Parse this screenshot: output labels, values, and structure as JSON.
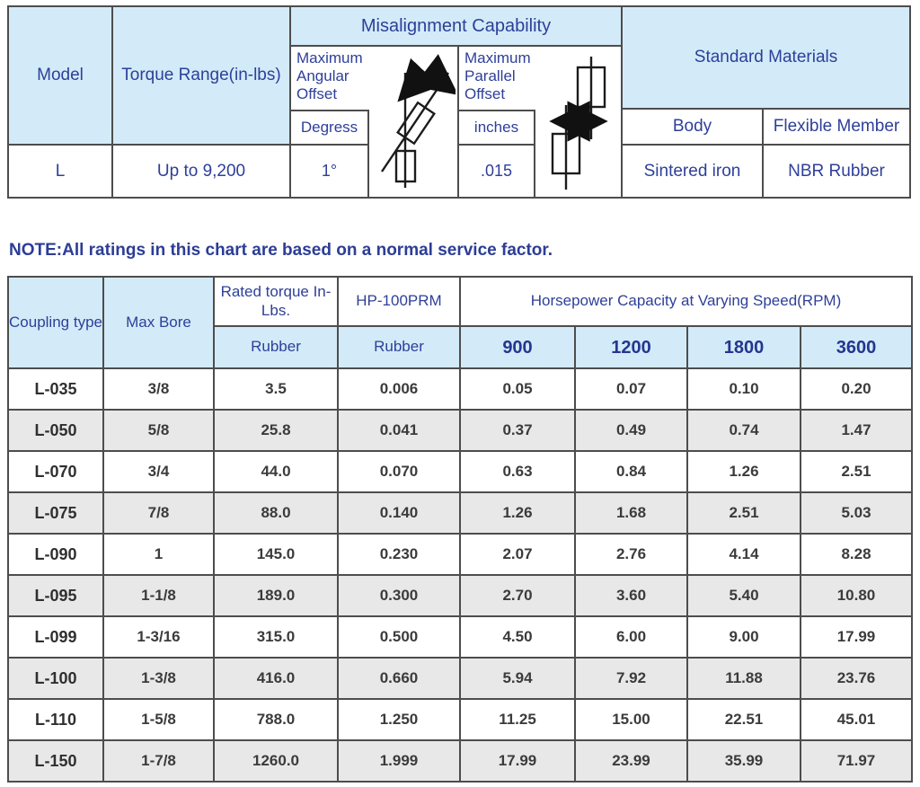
{
  "colors": {
    "header_fill": "#d3ebf8",
    "header_text": "#2e3f99",
    "note_text": "#2c3d96",
    "data_text": "#3b3b3b",
    "border": "#4d4d4d",
    "row_alt_fill": "#e8e8e8"
  },
  "spec_table": {
    "model": {
      "header": "Model",
      "value": "L"
    },
    "torque": {
      "header": "Torque Range(in-lbs)",
      "value": "Up to 9,200"
    },
    "misalignment": {
      "header": "Misalignment Capability",
      "angular": {
        "label": "Maximum Angular Offset",
        "unit": "Degress",
        "value": "1°",
        "icon": "angular-offset-icon"
      },
      "parallel": {
        "label": "Maximum Parallel Offset",
        "unit": "inches",
        "value": ".015",
        "icon": "parallel-offset-icon"
      }
    },
    "materials": {
      "header": "Standard Materials",
      "body": {
        "header": "Body",
        "value": "Sintered iron"
      },
      "flexible": {
        "header": "Flexible Member",
        "value": "NBR Rubber"
      }
    }
  },
  "note": "NOTE:All ratings in this chart are based on a normal service factor.",
  "hp_table": {
    "col_headers": {
      "coupling_type": "Coupling type",
      "max_bore": "Max Bore",
      "rated_torque": "Rated torque In-Lbs.",
      "rated_torque_sub": "Rubber",
      "hp_100rpm": "HP-100PRM",
      "hp_100rpm_sub": "Rubber",
      "horsepower": "Horsepower Capacity at Varying Speed(RPM)",
      "speeds": [
        "900",
        "1200",
        "1800",
        "3600"
      ]
    },
    "rows": [
      [
        "L-035",
        "3/8",
        "3.5",
        "0.006",
        "0.05",
        "0.07",
        "0.10",
        "0.20"
      ],
      [
        "L-050",
        "5/8",
        "25.8",
        "0.041",
        "0.37",
        "0.49",
        "0.74",
        "1.47"
      ],
      [
        "L-070",
        "3/4",
        "44.0",
        "0.070",
        "0.63",
        "0.84",
        "1.26",
        "2.51"
      ],
      [
        "L-075",
        "7/8",
        "88.0",
        "0.140",
        "1.26",
        "1.68",
        "2.51",
        "5.03"
      ],
      [
        "L-090",
        "1",
        "145.0",
        "0.230",
        "2.07",
        "2.76",
        "4.14",
        "8.28"
      ],
      [
        "L-095",
        "1-1/8",
        "189.0",
        "0.300",
        "2.70",
        "3.60",
        "5.40",
        "10.80"
      ],
      [
        "L-099",
        "1-3/16",
        "315.0",
        "0.500",
        "4.50",
        "6.00",
        "9.00",
        "17.99"
      ],
      [
        "L-100",
        "1-3/8",
        "416.0",
        "0.660",
        "5.94",
        "7.92",
        "11.88",
        "23.76"
      ],
      [
        "L-110",
        "1-5/8",
        "788.0",
        "1.250",
        "11.25",
        "15.00",
        "22.51",
        "45.01"
      ],
      [
        "L-150",
        "1-7/8",
        "1260.0",
        "1.999",
        "17.99",
        "23.99",
        "35.99",
        "71.97"
      ]
    ]
  }
}
